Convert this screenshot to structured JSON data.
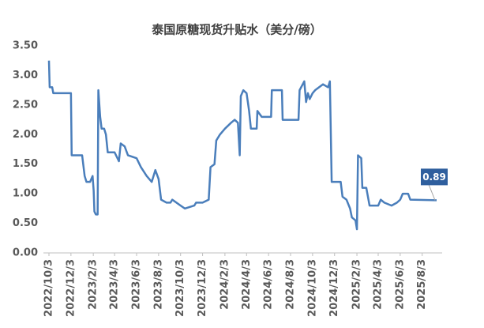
{
  "chart_data": {
    "type": "line",
    "title": "泰国原糖现货升贴水（美分/磅）",
    "x": [
      "2022/10/3",
      "2022/10/5",
      "2022/10/12",
      "2022/10/15",
      "2022/12/1",
      "2022/12/3",
      "2022/12/5",
      "2023/1/3",
      "2023/1/10",
      "2023/1/15",
      "2023/1/25",
      "2023/2/1",
      "2023/2/4",
      "2023/2/6",
      "2023/2/10",
      "2023/2/15",
      "2023/2/17",
      "2023/2/22",
      "2023/2/26",
      "2023/3/5",
      "2023/3/10",
      "2023/3/15",
      "2023/4/3",
      "2023/4/15",
      "2023/4/20",
      "2023/5/1",
      "2023/5/10",
      "2023/6/3",
      "2023/6/15",
      "2023/7/1",
      "2023/7/15",
      "2023/7/25",
      "2023/8/3",
      "2023/8/10",
      "2023/8/25",
      "2023/9/5",
      "2023/9/10",
      "2023/10/3",
      "2023/10/15",
      "2023/11/10",
      "2023/11/15",
      "2023/12/3",
      "2023/12/20",
      "2023/12/25",
      "2024/1/5",
      "2024/1/10",
      "2024/1/20",
      "2024/2/3",
      "2024/2/20",
      "2024/3/1",
      "2024/3/10",
      "2024/3/15",
      "2024/3/18",
      "2024/3/25",
      "2024/4/3",
      "2024/4/10",
      "2024/4/15",
      "2024/5/1",
      "2024/5/3",
      "2024/5/15",
      "2024/6/10",
      "2024/6/12",
      "2024/7/10",
      "2024/7/12",
      "2024/8/25",
      "2024/8/28",
      "2024/9/10",
      "2024/9/15",
      "2024/9/20",
      "2024/9/25",
      "2024/10/3",
      "2024/10/10",
      "2024/11/1",
      "2024/11/15",
      "2024/11/20",
      "2024/11/25",
      "2024/12/20",
      "2024/12/25",
      "2025/1/5",
      "2025/1/15",
      "2025/1/20",
      "2025/1/30",
      "2025/2/3",
      "2025/2/6",
      "2025/2/15",
      "2025/2/18",
      "2025/3/1",
      "2025/3/10",
      "2025/4/3",
      "2025/4/10",
      "2025/4/20",
      "2025/5/10",
      "2025/5/25",
      "2025/6/3",
      "2025/6/10",
      "2025/6/25",
      "2025/7/1",
      "2025/9/12"
    ],
    "series": [
      {
        "name": "泰国原糖现货升贴水",
        "color": "#4a7ebb",
        "values": [
          3.25,
          2.8,
          2.8,
          2.7,
          2.7,
          2.7,
          1.65,
          1.65,
          1.3,
          1.2,
          1.2,
          1.3,
          1.05,
          0.7,
          0.65,
          0.65,
          2.75,
          2.3,
          2.1,
          2.1,
          2.0,
          1.7,
          1.7,
          1.55,
          1.85,
          1.8,
          1.65,
          1.6,
          1.45,
          1.3,
          1.2,
          1.4,
          1.25,
          0.9,
          0.85,
          0.85,
          0.9,
          0.8,
          0.75,
          0.8,
          0.85,
          0.85,
          0.9,
          1.45,
          1.5,
          1.9,
          2.0,
          2.1,
          2.2,
          2.25,
          2.2,
          1.65,
          2.65,
          2.75,
          2.7,
          2.4,
          2.1,
          2.1,
          2.4,
          2.3,
          2.3,
          2.75,
          2.75,
          2.25,
          2.25,
          2.75,
          2.9,
          2.55,
          2.7,
          2.6,
          2.7,
          2.75,
          2.85,
          2.8,
          2.9,
          1.2,
          1.2,
          0.95,
          0.9,
          0.75,
          0.6,
          0.55,
          0.4,
          1.65,
          1.6,
          1.1,
          1.1,
          0.8,
          0.8,
          0.9,
          0.85,
          0.8,
          0.85,
          0.9,
          1.0,
          1.0,
          0.9,
          0.89
        ]
      }
    ],
    "label_last": true,
    "xlim": [
      "2022/10/3",
      "2025/9/12"
    ],
    "xticks": [
      "2022/10/3",
      "2022/12/3",
      "2023/2/3",
      "2023/4/3",
      "2023/6/3",
      "2023/8/3",
      "2023/10/3",
      "2023/12/3",
      "2024/2/3",
      "2024/4/3",
      "2024/6/3",
      "2024/8/3",
      "2024/10/3",
      "2024/12/3",
      "2025/2/3",
      "2025/4/3",
      "2025/6/3",
      "2025/8/3"
    ],
    "ylim": [
      0,
      3.5
    ],
    "yticks": [
      {
        "value": 0,
        "label": "0.00"
      },
      {
        "value": 0.5,
        "label": "0.50"
      },
      {
        "value": 1,
        "label": "1.00"
      },
      {
        "value": 1.5,
        "label": "1.50"
      },
      {
        "value": 2,
        "label": "2.00"
      },
      {
        "value": 2.5,
        "label": "2.50"
      },
      {
        "value": 3,
        "label": "3.00"
      },
      {
        "value": 3.5,
        "label": "3.50"
      }
    ],
    "grid": false
  }
}
